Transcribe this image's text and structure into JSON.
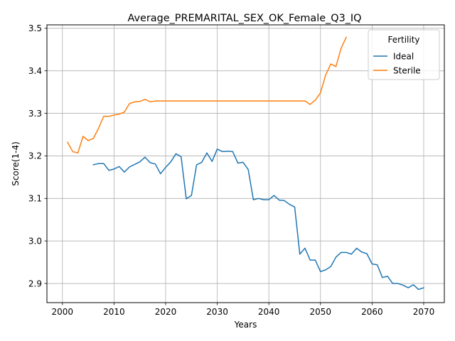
{
  "chart_data": {
    "type": "line",
    "title": "Average_PREMARITAL_SEX_OK_Female_Q3_IQ",
    "xlabel": "Years",
    "ylabel": "Score(1-4)",
    "xlim": [
      1997,
      2074
    ],
    "ylim": [
      2.855,
      3.508
    ],
    "xticks": [
      2000,
      2010,
      2020,
      2030,
      2040,
      2050,
      2060,
      2070
    ],
    "yticks": [
      2.9,
      3.0,
      3.1,
      3.2,
      3.3,
      3.4,
      3.5
    ],
    "grid": true,
    "legend": {
      "title": "Fertility",
      "placement": "top-right"
    },
    "series": [
      {
        "name": "Ideal",
        "color": "#1f77b4",
        "x": [
          2006,
          2007,
          2008,
          2009,
          2010,
          2011,
          2012,
          2013,
          2014,
          2015,
          2016,
          2017,
          2018,
          2019,
          2020,
          2021,
          2022,
          2023,
          2024,
          2025,
          2026,
          2027,
          2028,
          2029,
          2030,
          2031,
          2032,
          2033,
          2034,
          2035,
          2036,
          2037,
          2038,
          2039,
          2040,
          2041,
          2042,
          2043,
          2044,
          2045,
          2046,
          2047,
          2048,
          2049,
          2050,
          2051,
          2052,
          2053,
          2054,
          2055,
          2056,
          2057,
          2058,
          2059,
          2060,
          2061,
          2062,
          2063,
          2064,
          2065,
          2066,
          2067,
          2068,
          2069,
          2070
        ],
        "y": [
          3.179,
          3.182,
          3.182,
          3.166,
          3.169,
          3.175,
          3.162,
          3.174,
          3.18,
          3.186,
          3.197,
          3.184,
          3.181,
          3.158,
          3.173,
          3.186,
          3.205,
          3.198,
          3.099,
          3.107,
          3.179,
          3.185,
          3.207,
          3.187,
          3.216,
          3.21,
          3.211,
          3.21,
          3.183,
          3.185,
          3.168,
          3.097,
          3.1,
          3.097,
          3.097,
          3.107,
          3.096,
          3.095,
          3.086,
          3.08,
          2.969,
          2.983,
          2.955,
          2.955,
          2.928,
          2.932,
          2.94,
          2.962,
          2.973,
          2.973,
          2.969,
          2.983,
          2.974,
          2.97,
          2.946,
          2.944,
          2.914,
          2.917,
          2.9,
          2.9,
          2.896,
          2.89,
          2.897,
          2.886,
          2.89
        ]
      },
      {
        "name": "Sterile",
        "color": "#ff7f0e",
        "x": [
          2001,
          2002,
          2003,
          2004,
          2005,
          2006,
          2007,
          2008,
          2009,
          2010,
          2011,
          2012,
          2013,
          2014,
          2015,
          2016,
          2017,
          2018,
          2019,
          2020,
          2021,
          2022,
          2023,
          2024,
          2025,
          2026,
          2027,
          2028,
          2029,
          2030,
          2031,
          2032,
          2033,
          2034,
          2035,
          2036,
          2037,
          2038,
          2039,
          2040,
          2041,
          2042,
          2043,
          2044,
          2045,
          2046,
          2047,
          2048,
          2049,
          2050,
          2051,
          2052,
          2053,
          2054,
          2055
        ],
        "y": [
          3.232,
          3.21,
          3.207,
          3.246,
          3.236,
          3.241,
          3.265,
          3.293,
          3.293,
          3.296,
          3.298,
          3.303,
          3.323,
          3.327,
          3.328,
          3.333,
          3.327,
          3.329,
          3.329,
          3.329,
          3.329,
          3.329,
          3.329,
          3.329,
          3.329,
          3.329,
          3.329,
          3.329,
          3.329,
          3.329,
          3.329,
          3.329,
          3.329,
          3.329,
          3.329,
          3.329,
          3.329,
          3.329,
          3.329,
          3.329,
          3.329,
          3.329,
          3.329,
          3.329,
          3.329,
          3.329,
          3.329,
          3.321,
          3.331,
          3.348,
          3.39,
          3.416,
          3.41,
          3.453,
          3.479
        ]
      }
    ]
  }
}
